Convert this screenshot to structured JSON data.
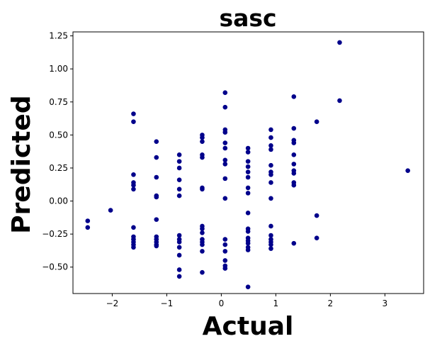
{
  "chart_data": {
    "type": "scatter",
    "title": "sasc",
    "xlabel": "Actual",
    "ylabel": "Predicted",
    "xlim": [
      -2.72,
      3.71
    ],
    "ylim": [
      -0.7,
      1.28
    ],
    "xticks": [
      -2,
      -1,
      0,
      1,
      2,
      3
    ],
    "xtick_labels": [
      "−2",
      "−1",
      "0",
      "1",
      "2",
      "3"
    ],
    "yticks": [
      -0.5,
      -0.25,
      0.0,
      0.25,
      0.5,
      0.75,
      1.0,
      1.25
    ],
    "ytick_labels": [
      "−0.50",
      "−0.25",
      "0.00",
      "0.25",
      "0.50",
      "0.75",
      "1.00",
      "1.25"
    ],
    "grid": false,
    "marker_color": "#00008b",
    "points": [
      {
        "x": -2.45,
        "y": -0.15
      },
      {
        "x": -2.45,
        "y": -0.2
      },
      {
        "x": -2.03,
        "y": -0.07
      },
      {
        "x": -1.61,
        "y": 0.66
      },
      {
        "x": -1.61,
        "y": 0.6
      },
      {
        "x": -1.61,
        "y": 0.2
      },
      {
        "x": -1.61,
        "y": 0.14
      },
      {
        "x": -1.61,
        "y": 0.12
      },
      {
        "x": -1.61,
        "y": 0.09
      },
      {
        "x": -1.61,
        "y": -0.2
      },
      {
        "x": -1.61,
        "y": -0.27
      },
      {
        "x": -1.61,
        "y": -0.29
      },
      {
        "x": -1.61,
        "y": -0.31
      },
      {
        "x": -1.61,
        "y": -0.33
      },
      {
        "x": -1.61,
        "y": -0.35
      },
      {
        "x": -1.19,
        "y": 0.45
      },
      {
        "x": -1.19,
        "y": 0.33
      },
      {
        "x": -1.19,
        "y": 0.18
      },
      {
        "x": -1.19,
        "y": 0.04
      },
      {
        "x": -1.19,
        "y": 0.03
      },
      {
        "x": -1.19,
        "y": -0.14
      },
      {
        "x": -1.19,
        "y": -0.27
      },
      {
        "x": -1.19,
        "y": -0.29
      },
      {
        "x": -1.19,
        "y": -0.31
      },
      {
        "x": -1.19,
        "y": -0.33
      },
      {
        "x": -1.19,
        "y": -0.34
      },
      {
        "x": -0.77,
        "y": 0.35
      },
      {
        "x": -0.77,
        "y": 0.3
      },
      {
        "x": -0.77,
        "y": 0.25
      },
      {
        "x": -0.77,
        "y": 0.16
      },
      {
        "x": -0.77,
        "y": 0.09
      },
      {
        "x": -0.77,
        "y": 0.04
      },
      {
        "x": -0.77,
        "y": -0.26
      },
      {
        "x": -0.77,
        "y": -0.29
      },
      {
        "x": -0.77,
        "y": -0.31
      },
      {
        "x": -0.77,
        "y": -0.35
      },
      {
        "x": -0.77,
        "y": -0.41
      },
      {
        "x": -0.77,
        "y": -0.52
      },
      {
        "x": -0.77,
        "y": -0.57
      },
      {
        "x": -0.35,
        "y": 0.5
      },
      {
        "x": -0.35,
        "y": 0.48
      },
      {
        "x": -0.35,
        "y": 0.45
      },
      {
        "x": -0.35,
        "y": 0.35
      },
      {
        "x": -0.35,
        "y": 0.33
      },
      {
        "x": -0.35,
        "y": 0.1
      },
      {
        "x": -0.35,
        "y": 0.09
      },
      {
        "x": -0.35,
        "y": -0.19
      },
      {
        "x": -0.35,
        "y": -0.21
      },
      {
        "x": -0.35,
        "y": -0.24
      },
      {
        "x": -0.35,
        "y": -0.29
      },
      {
        "x": -0.35,
        "y": -0.31
      },
      {
        "x": -0.35,
        "y": -0.33
      },
      {
        "x": -0.35,
        "y": -0.38
      },
      {
        "x": -0.35,
        "y": -0.54
      },
      {
        "x": 0.07,
        "y": 0.82
      },
      {
        "x": 0.07,
        "y": 0.71
      },
      {
        "x": 0.07,
        "y": 0.54
      },
      {
        "x": 0.07,
        "y": 0.52
      },
      {
        "x": 0.07,
        "y": 0.44
      },
      {
        "x": 0.07,
        "y": 0.4
      },
      {
        "x": 0.07,
        "y": 0.31
      },
      {
        "x": 0.07,
        "y": 0.28
      },
      {
        "x": 0.07,
        "y": 0.17
      },
      {
        "x": 0.07,
        "y": 0.02
      },
      {
        "x": 0.07,
        "y": -0.29
      },
      {
        "x": 0.07,
        "y": -0.33
      },
      {
        "x": 0.07,
        "y": -0.38
      },
      {
        "x": 0.07,
        "y": -0.45
      },
      {
        "x": 0.07,
        "y": -0.49
      },
      {
        "x": 0.07,
        "y": -0.51
      },
      {
        "x": 0.49,
        "y": 0.4
      },
      {
        "x": 0.49,
        "y": 0.37
      },
      {
        "x": 0.49,
        "y": 0.3
      },
      {
        "x": 0.49,
        "y": 0.26
      },
      {
        "x": 0.49,
        "y": 0.22
      },
      {
        "x": 0.49,
        "y": 0.18
      },
      {
        "x": 0.49,
        "y": 0.1
      },
      {
        "x": 0.49,
        "y": 0.06
      },
      {
        "x": 0.49,
        "y": -0.09
      },
      {
        "x": 0.49,
        "y": -0.21
      },
      {
        "x": 0.49,
        "y": -0.23
      },
      {
        "x": 0.49,
        "y": -0.28
      },
      {
        "x": 0.49,
        "y": -0.3
      },
      {
        "x": 0.49,
        "y": -0.32
      },
      {
        "x": 0.49,
        "y": -0.35
      },
      {
        "x": 0.49,
        "y": -0.37
      },
      {
        "x": 0.49,
        "y": -0.65
      },
      {
        "x": 0.91,
        "y": 0.54
      },
      {
        "x": 0.91,
        "y": 0.48
      },
      {
        "x": 0.91,
        "y": 0.42
      },
      {
        "x": 0.91,
        "y": 0.39
      },
      {
        "x": 0.91,
        "y": 0.27
      },
      {
        "x": 0.91,
        "y": 0.22
      },
      {
        "x": 0.91,
        "y": 0.2
      },
      {
        "x": 0.91,
        "y": 0.14
      },
      {
        "x": 0.91,
        "y": 0.02
      },
      {
        "x": 0.91,
        "y": -0.19
      },
      {
        "x": 0.91,
        "y": -0.26
      },
      {
        "x": 0.91,
        "y": -0.29
      },
      {
        "x": 0.91,
        "y": -0.31
      },
      {
        "x": 0.91,
        "y": -0.33
      },
      {
        "x": 0.91,
        "y": -0.36
      },
      {
        "x": 1.33,
        "y": 0.79
      },
      {
        "x": 1.33,
        "y": 0.55
      },
      {
        "x": 1.33,
        "y": 0.46
      },
      {
        "x": 1.33,
        "y": 0.44
      },
      {
        "x": 1.33,
        "y": 0.35
      },
      {
        "x": 1.33,
        "y": 0.28
      },
      {
        "x": 1.33,
        "y": 0.23
      },
      {
        "x": 1.33,
        "y": 0.21
      },
      {
        "x": 1.33,
        "y": 0.14
      },
      {
        "x": 1.33,
        "y": 0.12
      },
      {
        "x": 1.33,
        "y": -0.32
      },
      {
        "x": 1.75,
        "y": 0.6
      },
      {
        "x": 1.75,
        "y": -0.11
      },
      {
        "x": 1.75,
        "y": -0.28
      },
      {
        "x": 2.17,
        "y": 1.2
      },
      {
        "x": 2.17,
        "y": 0.76
      },
      {
        "x": 3.42,
        "y": 0.23
      }
    ]
  }
}
